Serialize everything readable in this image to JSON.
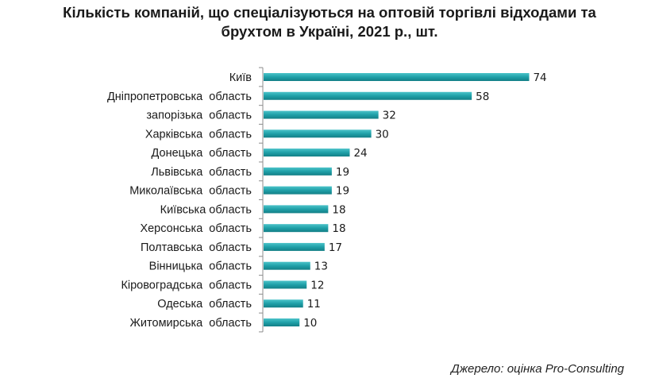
{
  "chart_data": {
    "type": "bar",
    "orientation": "horizontal",
    "title": "Кількість компаній, що спеціалізуються на оптовій торгівлі відходами та брухтом в Україні, 2021 р., шт.",
    "title_lines": [
      "Кількість компаній, що спеціалізуються на оптовій торгівлі відходами та",
      "брухтом в Україні, 2021 р., шт."
    ],
    "categories": [
      "Київ",
      "Дніпропетровська  область",
      "запорізька  область",
      "Харківська  область",
      "Донецька  область",
      "Львівська  область",
      "Миколаївська  область",
      "Київська область",
      "Херсонська  область",
      "Полтавська  область",
      "Вінницька  область",
      "Кіровоградська  область",
      "Одеська  область",
      "Житомирська  область"
    ],
    "values": [
      74,
      58,
      32,
      30,
      24,
      19,
      19,
      18,
      18,
      17,
      13,
      12,
      11,
      10
    ],
    "bar_color": "#1fa0a8",
    "legend": "none",
    "grid": false
  },
  "source": "Джерело:  оцінка  Pro-Consulting"
}
